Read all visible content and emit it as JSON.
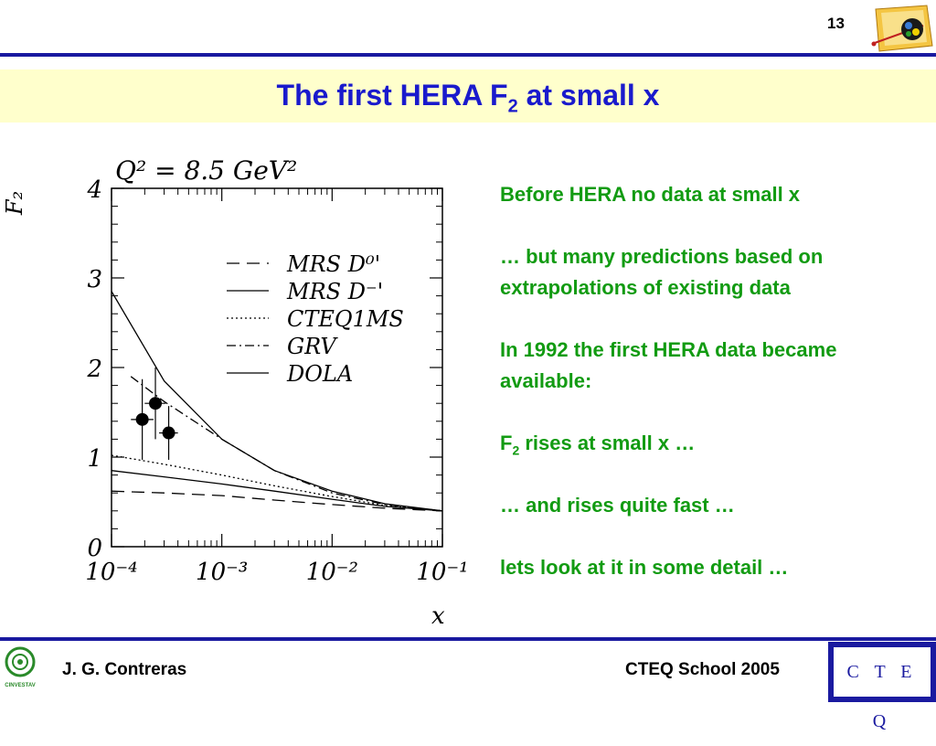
{
  "slide": {
    "page_number": "13",
    "title_main": "The first HERA F",
    "title_sub": "2",
    "title_end": " at small x"
  },
  "bullets": [
    {
      "text": "Before HERA no data at small x"
    },
    {
      "text": "… but many predictions based on extrapolations of existing data"
    },
    {
      "text": "In 1992 the first HERA data became available:"
    },
    {
      "pre": "F",
      "sub": "2",
      "post": " rises at small x …"
    },
    {
      "text": "… and rises quite fast  …"
    },
    {
      "text": "lets look at it in some detail …"
    }
  ],
  "footer": {
    "author": "J. G. Contreras",
    "event": "CTEQ School 2005",
    "logo_text": "C T E Q",
    "institution": "CINVESTAV"
  },
  "colors": {
    "rule": "#1a1aa0",
    "title": "#1a1acc",
    "title_band": "#ffffcc",
    "bullet_text": "#129b12"
  },
  "chart_data": {
    "type": "line",
    "annotation": "Q² = 8.5 GeV²",
    "ylabel": "F₂",
    "xlabel": "x",
    "xscale": "log",
    "xlim": [
      0.0001,
      0.1
    ],
    "ylim": [
      0,
      4
    ],
    "x_tick_labels": [
      "10⁻⁴",
      "10⁻³",
      "10⁻²",
      "10⁻¹"
    ],
    "y_tick_labels": [
      "0",
      "1",
      "2",
      "3",
      "4"
    ],
    "series": [
      {
        "name": "MRS D⁰'",
        "style": "dash",
        "x": [
          0.0001,
          0.0003,
          0.001,
          0.003,
          0.01,
          0.03,
          0.1
        ],
        "y": [
          0.62,
          0.6,
          0.57,
          0.52,
          0.47,
          0.43,
          0.4
        ]
      },
      {
        "name": "MRS D⁻'",
        "style": "solid",
        "x": [
          0.0001,
          0.0003,
          0.001,
          0.003,
          0.01,
          0.03,
          0.1
        ],
        "y": [
          2.85,
          1.85,
          1.2,
          0.85,
          0.62,
          0.48,
          0.4
        ]
      },
      {
        "name": "CTEQ1MS",
        "style": "dot",
        "x": [
          0.0001,
          0.0003,
          0.001,
          0.003,
          0.01,
          0.03,
          0.1
        ],
        "y": [
          1.02,
          0.92,
          0.8,
          0.68,
          0.56,
          0.46,
          0.4
        ]
      },
      {
        "name": "GRV",
        "style": "dashdot",
        "x": [
          0.00015,
          0.0003,
          0.001,
          0.003,
          0.01,
          0.03,
          0.1
        ],
        "y": [
          1.9,
          1.62,
          1.2,
          0.85,
          0.6,
          0.47,
          0.4
        ]
      },
      {
        "name": "DOLA",
        "style": "solid",
        "x": [
          0.0001,
          0.0003,
          0.001,
          0.003,
          0.01,
          0.03,
          0.1
        ],
        "y": [
          0.85,
          0.78,
          0.7,
          0.62,
          0.53,
          0.45,
          0.4
        ]
      }
    ],
    "points": [
      {
        "x": 0.00019,
        "y": 1.42,
        "yerr": 0.45,
        "xerr_low": 0.00015,
        "xerr_high": 0.00024
      },
      {
        "x": 0.00025,
        "y": 1.6,
        "yerr": 0.4,
        "xerr_low": 0.0002,
        "xerr_high": 0.00031
      },
      {
        "x": 0.00033,
        "y": 1.27,
        "yerr": 0.3,
        "xerr_low": 0.00027,
        "xerr_high": 0.0004
      }
    ]
  }
}
